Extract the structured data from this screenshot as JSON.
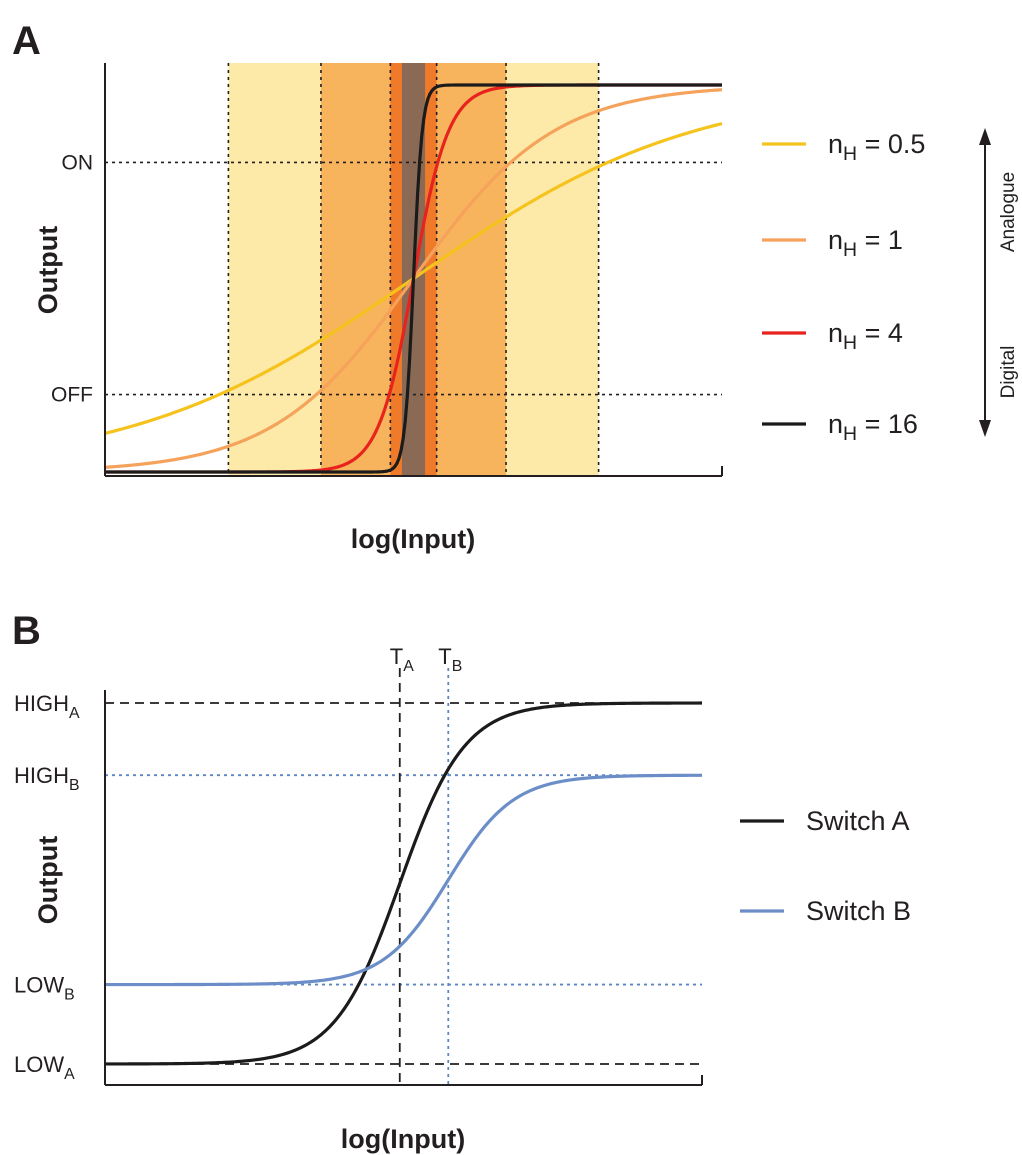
{
  "chart_data": [
    {
      "panel": "A",
      "type": "line",
      "xlabel": "log(Input)",
      "ylabel": "Output",
      "xlim": [
        -4,
        4
      ],
      "ylim": [
        0,
        1
      ],
      "y_ticks": [
        {
          "label": "ON",
          "y": 0.8
        },
        {
          "label": "OFF",
          "y": 0.2
        }
      ],
      "grid": false,
      "legend_position": "right",
      "series": [
        {
          "name_base": "n",
          "name_sub": "H",
          "name_rest": " = 0.5",
          "n": 0.5,
          "color": "#f5c31c"
        },
        {
          "name_base": "n",
          "name_sub": "H",
          "name_rest": " = 1",
          "n": 1,
          "color": "#f5a25a"
        },
        {
          "name_base": "n",
          "name_sub": "H",
          "name_rest": " = 4",
          "n": 4,
          "color": "#e8231e"
        },
        {
          "name_base": "n",
          "name_sub": "H",
          "name_rest": " = 16",
          "n": 16,
          "color": "#1b1b1b"
        }
      ],
      "shaded_bands": [
        {
          "x_range": [
            -2.4,
            2.4
          ],
          "color": "#fde9a8"
        },
        {
          "x_range": [
            -1.2,
            1.2
          ],
          "color": "#f8b45c"
        },
        {
          "x_range": [
            -0.3,
            0.3
          ],
          "color": "#ef7b2a"
        },
        {
          "x_range": [
            -0.15,
            0.15
          ],
          "color": "#8a6a55"
        }
      ],
      "scale_arrow": {
        "top_label": "Analogue",
        "bottom_label": "Digital"
      }
    },
    {
      "panel": "B",
      "type": "line",
      "xlabel": "log(Input)",
      "ylabel": "Output",
      "xlim": [
        -4,
        4
      ],
      "ylim": [
        0,
        1
      ],
      "grid": false,
      "legend_position": "right",
      "series": [
        {
          "name": "Switch A",
          "color": "#1b1b1b",
          "low": 0.0,
          "high": 1.0,
          "threshold": -0.05,
          "steepness": 2.3
        },
        {
          "name": "Switch B",
          "color": "#6c8ec8",
          "low": 0.22,
          "high": 0.8,
          "threshold": 0.6,
          "steepness": 2.3
        }
      ],
      "y_levels": [
        {
          "base": "HIGH",
          "sub": "A",
          "y": 1.0,
          "color": "#231f20",
          "line": "dashed"
        },
        {
          "base": "HIGH",
          "sub": "B",
          "y": 0.8,
          "color": "#5b86c0",
          "line": "dotted"
        },
        {
          "base": "LOW",
          "sub": "B",
          "y": 0.22,
          "color": "#5b86c0",
          "line": "dotted"
        },
        {
          "base": "LOW",
          "sub": "A",
          "y": 0.0,
          "color": "#231f20",
          "line": "dashed"
        }
      ],
      "x_thresholds": [
        {
          "base": "T",
          "sub": "A",
          "x": -0.05,
          "color": "#231f20",
          "line": "dashed"
        },
        {
          "base": "T",
          "sub": "B",
          "x": 0.6,
          "color": "#5b86c0",
          "line": "dotted"
        }
      ]
    }
  ]
}
